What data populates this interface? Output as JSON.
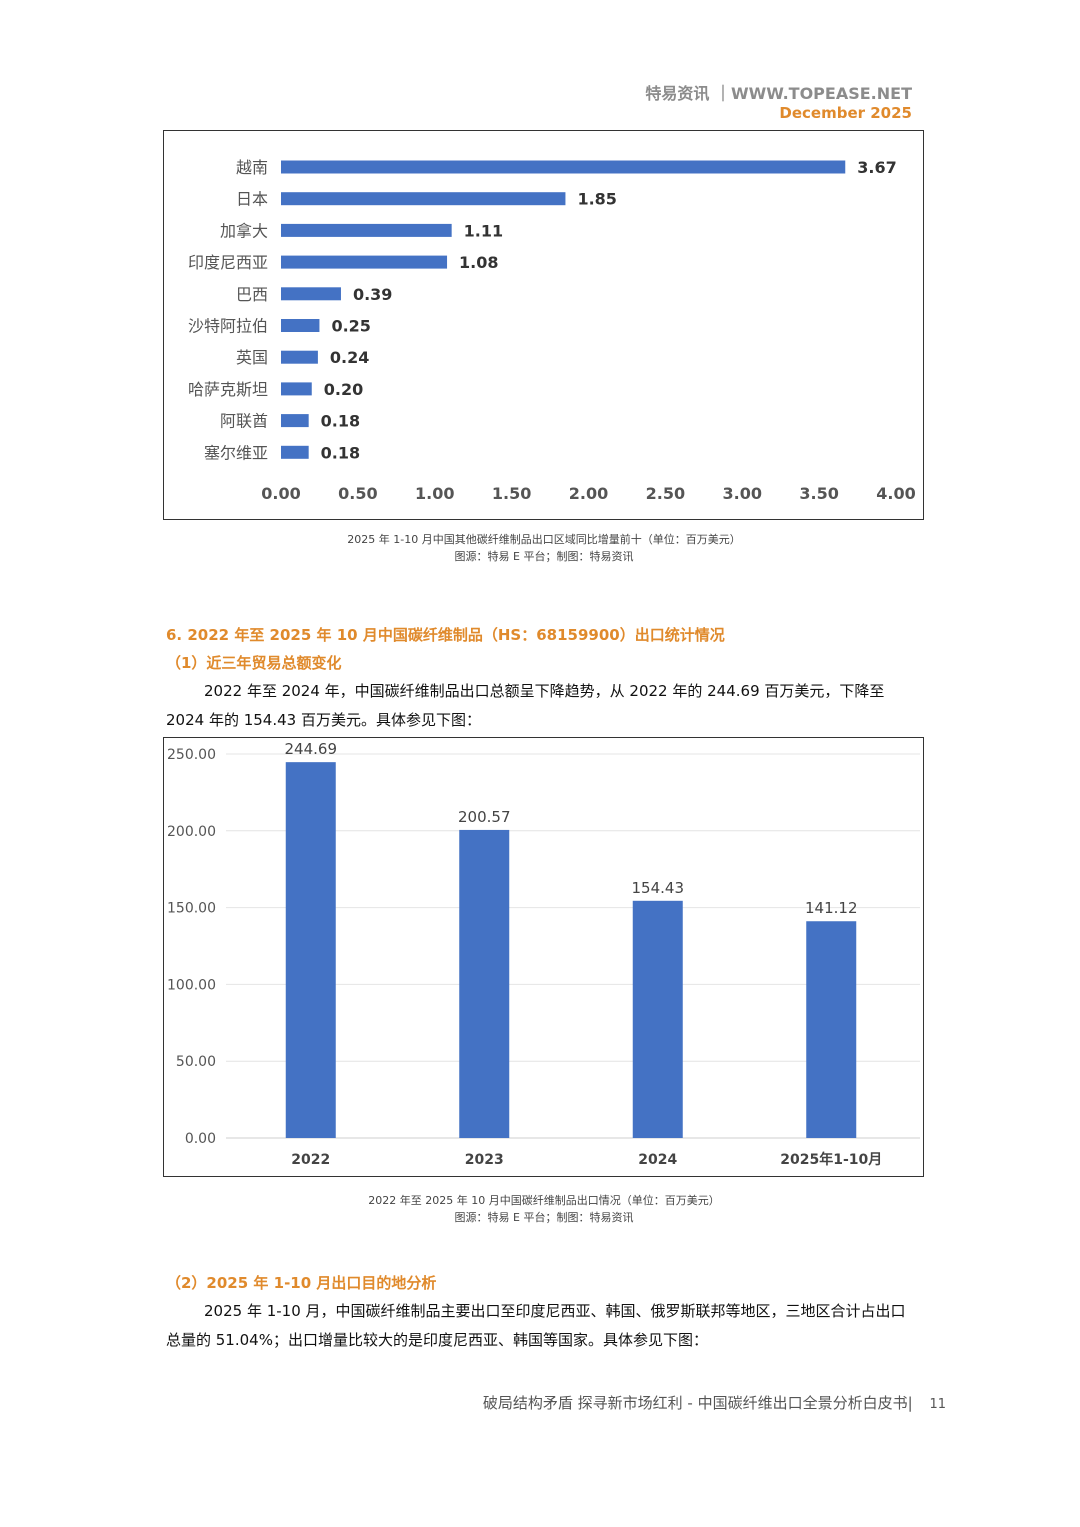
{
  "header": {
    "brand": "特易资讯 ｜WWW.TOPEASE.NET",
    "date": "December 2025"
  },
  "chart1": {
    "caption": "2025 年 1-10 月中国其他碳纤维制品出口区域同比增量前十（单位：百万美元）",
    "source": "图源：特易 E 平台；制图：特易资讯",
    "bar_color": "#4472c4"
  },
  "section6": {
    "title": "6. 2022 年至 2025 年 10 月中国碳纤维制品（HS：68159900）出口统计情况",
    "sub1": "（1）近三年贸易总额变化",
    "para1": "2022 年至 2024 年，中国碳纤维制品出口总额呈下降趋势，从 2022 年的 244.69 百万美元，下降至 2024 年的 154.43 百万美元。具体参见下图："
  },
  "chart2": {
    "caption": "2022 年至 2025 年 10 月中国碳纤维制品出口情况（单位：百万美元）",
    "source": "图源：特易 E 平台；制图：特易资讯",
    "bar_color": "#4472c4"
  },
  "section6b": {
    "sub2": "（2）2025 年 1-10 月出口目的地分析",
    "para2": "2025 年 1-10 月，中国碳纤维制品主要出口至印度尼西亚、韩国、俄罗斯联邦等地区，三地区合计占出口总量的 51.04%；出口增量比较大的是印度尼西亚、韩国等国家。具体参见下图："
  },
  "footer": {
    "text": "破局结构矛盾 探寻新市场红利 - 中国碳纤维出口全景分析白皮书|",
    "page": "11"
  },
  "chart_data": [
    {
      "type": "bar",
      "orientation": "horizontal",
      "categories": [
        "越南",
        "日本",
        "加拿大",
        "印度尼西亚",
        "巴西",
        "沙特阿拉伯",
        "英国",
        "哈萨克斯坦",
        "阿联酋",
        "塞尔维亚"
      ],
      "values": [
        3.67,
        1.85,
        1.11,
        1.08,
        0.39,
        0.25,
        0.24,
        0.2,
        0.18,
        0.18
      ],
      "labels": [
        "3.67",
        "1.85",
        "1.11",
        "1.08",
        "0.39",
        "0.25",
        "0.24",
        "0.20",
        "0.18",
        "0.18"
      ],
      "xlim": [
        0,
        4
      ],
      "ticks": [
        "0.00",
        "0.50",
        "1.00",
        "1.50",
        "2.00",
        "2.50",
        "3.00",
        "3.50",
        "4.00"
      ],
      "grid": false
    },
    {
      "type": "bar",
      "orientation": "vertical",
      "categories": [
        "2022",
        "2023",
        "2024",
        "2025年1-10月"
      ],
      "values": [
        244.69,
        200.57,
        154.43,
        141.12
      ],
      "labels": [
        "244.69",
        "200.57",
        "154.43",
        "141.12"
      ],
      "ylim": [
        0,
        250
      ],
      "ticks": [
        "0.00",
        "50.00",
        "100.00",
        "150.00",
        "200.00",
        "250.00"
      ],
      "grid": true
    }
  ]
}
